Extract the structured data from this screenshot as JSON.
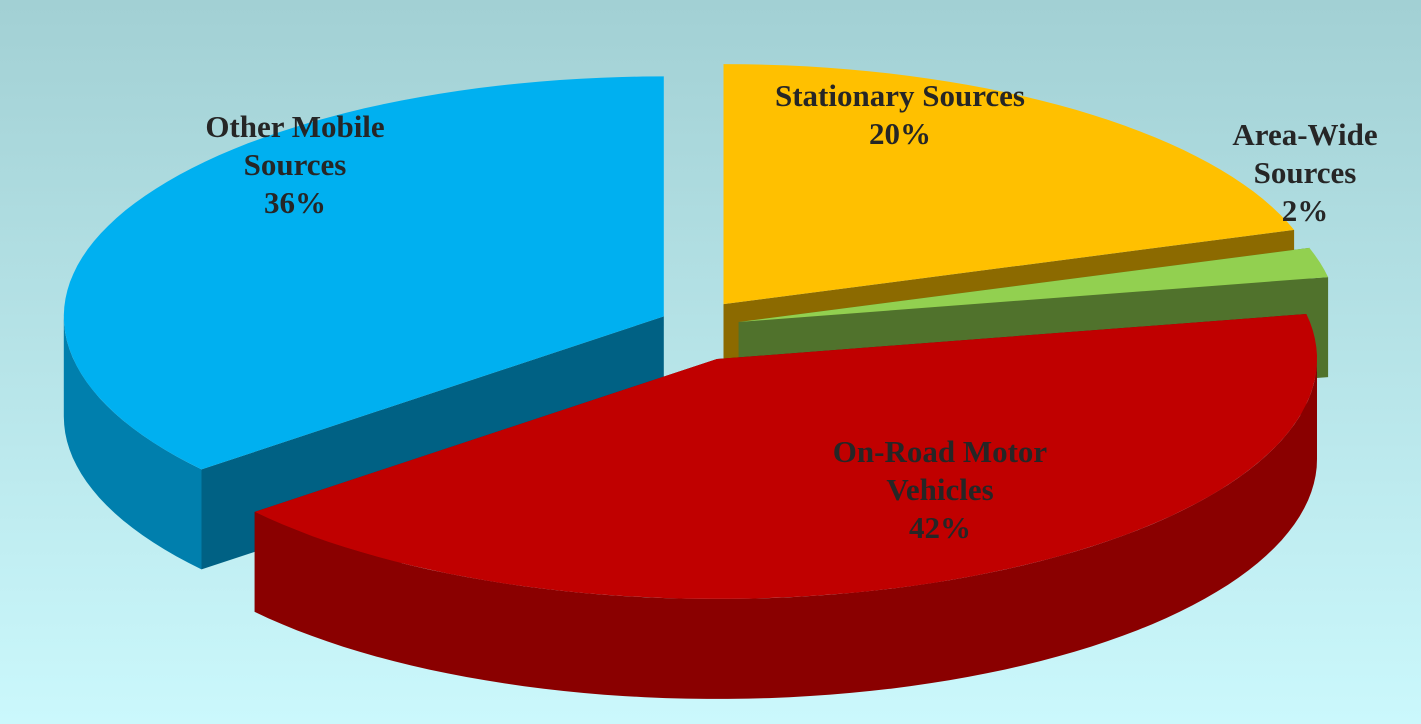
{
  "chart_data": {
    "type": "pie3d",
    "categories": [
      "Stationary Sources",
      "Area-Wide Sources",
      "On-Road Motor Vehicles",
      "Other Mobile Sources"
    ],
    "values": [
      20,
      2,
      42,
      36
    ],
    "value_labels": [
      "20%",
      "2%",
      "42%",
      "36%"
    ],
    "colors": [
      "#ffc000",
      "#92d050",
      "#c00000",
      "#00b0f0"
    ]
  }
}
